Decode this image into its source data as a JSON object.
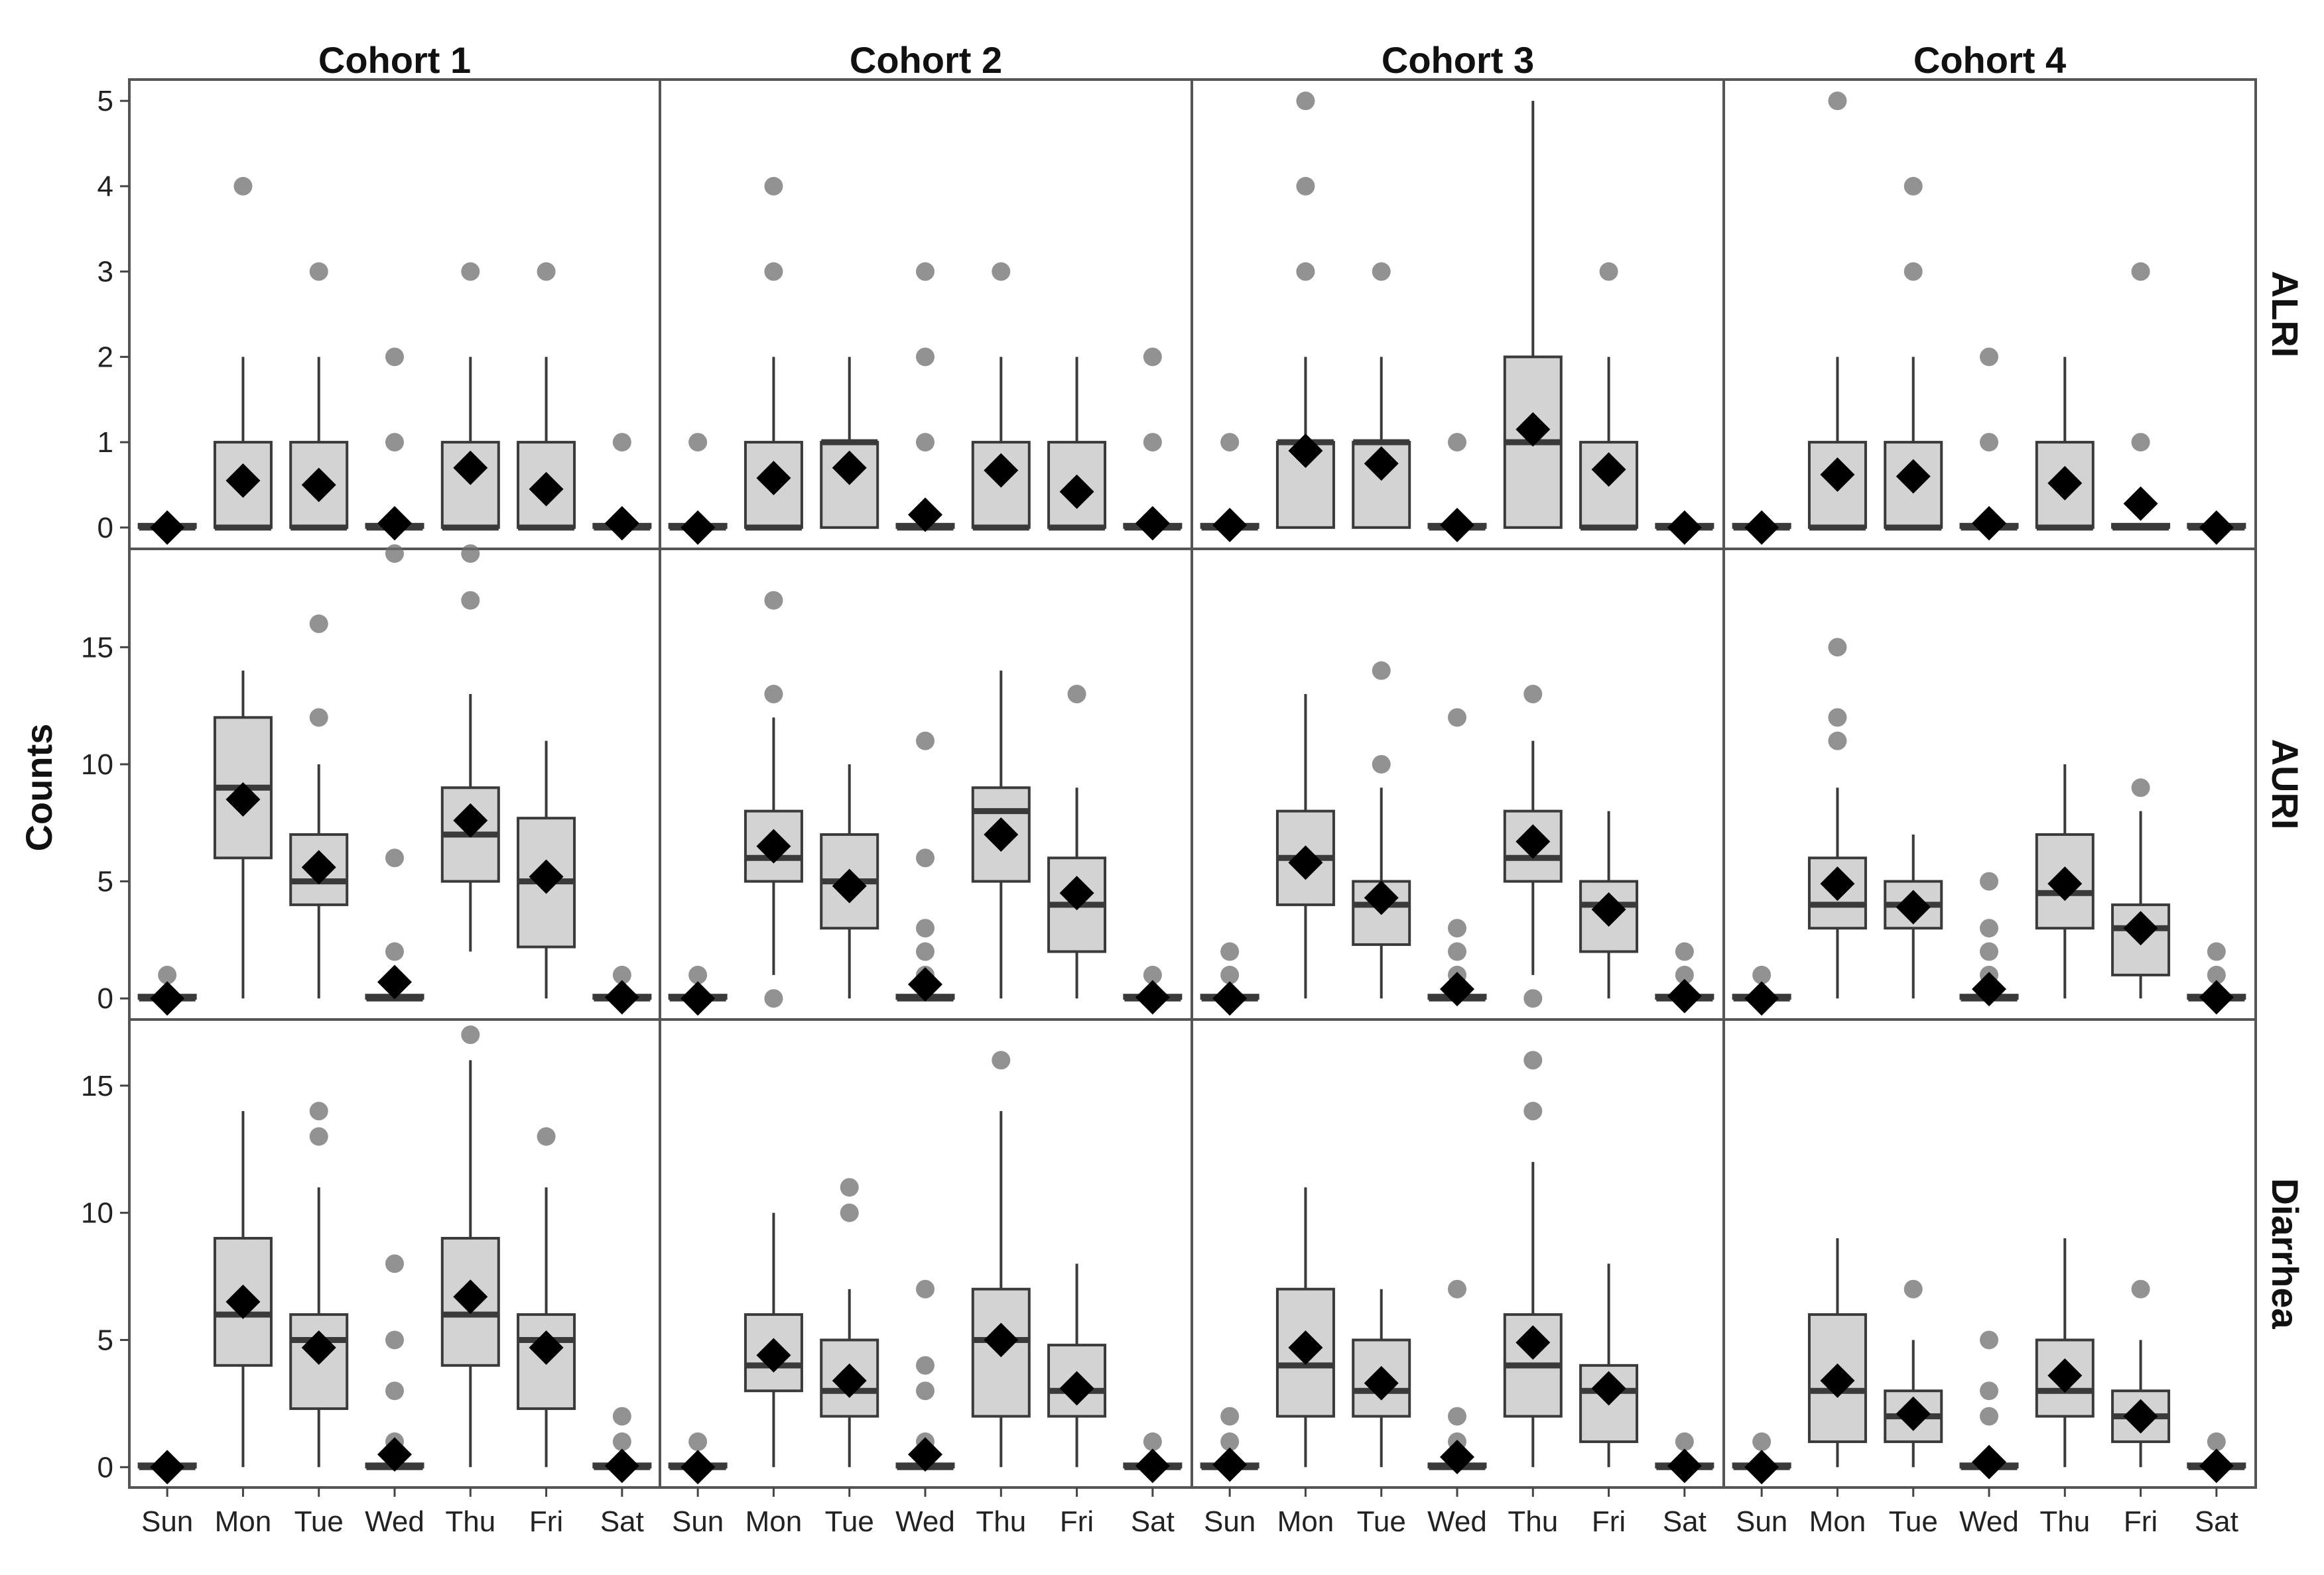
{
  "chart_data": {
    "type": "boxplot",
    "ylabel": "Counts",
    "columns": [
      "Cohort 1",
      "Cohort 2",
      "Cohort 3",
      "Cohort 4"
    ],
    "rows": [
      {
        "name": "ALRI",
        "ylim": [
          -0.25,
          5.25
        ],
        "ticks": [
          0,
          1,
          2,
          3,
          4,
          5
        ]
      },
      {
        "name": "AURI",
        "ylim": [
          -0.9,
          19.2
        ],
        "ticks": [
          0,
          5,
          10,
          15
        ]
      },
      {
        "name": "Diarrhea",
        "ylim": [
          -0.8,
          17.6
        ],
        "ticks": [
          0,
          5,
          10,
          15
        ]
      }
    ],
    "categories": [
      "Sun",
      "Mon",
      "Tue",
      "Wed",
      "Thu",
      "Fri",
      "Sat"
    ],
    "colors": {
      "box_fill": "#d3d3d3",
      "box_stroke": "#3a3a3a",
      "mean": "#000000",
      "outlier": "#6e6e6e",
      "frame": "#555555"
    },
    "panels": [
      [
        [
          {
            "q1": 0,
            "med": 0,
            "q3": 0,
            "lo": 0,
            "hi": 0,
            "mean": 0,
            "out": []
          },
          {
            "q1": 0,
            "med": 0,
            "q3": 1,
            "lo": 0,
            "hi": 2,
            "mean": 0.55,
            "out": [
              4
            ]
          },
          {
            "q1": 0,
            "med": 0,
            "q3": 1,
            "lo": 0,
            "hi": 2,
            "mean": 0.5,
            "out": [
              3
            ]
          },
          {
            "q1": 0,
            "med": 0,
            "q3": 0,
            "lo": 0,
            "hi": 0,
            "mean": 0.05,
            "out": [
              1,
              2
            ]
          },
          {
            "q1": 0,
            "med": 0,
            "q3": 1,
            "lo": 0,
            "hi": 2,
            "mean": 0.7,
            "out": [
              3
            ]
          },
          {
            "q1": 0,
            "med": 0,
            "q3": 1,
            "lo": 0,
            "hi": 2,
            "mean": 0.45,
            "out": [
              3
            ]
          },
          {
            "q1": 0,
            "med": 0,
            "q3": 0,
            "lo": 0,
            "hi": 0,
            "mean": 0.05,
            "out": [
              1
            ]
          }
        ],
        [
          {
            "q1": 0,
            "med": 0,
            "q3": 0,
            "lo": 0,
            "hi": 0,
            "mean": 0,
            "out": [
              1
            ]
          },
          {
            "q1": 0,
            "med": 0,
            "q3": 1,
            "lo": 0,
            "hi": 2,
            "mean": 0.58,
            "out": [
              3,
              4
            ]
          },
          {
            "q1": 0,
            "med": 1,
            "q3": 1,
            "lo": 0,
            "hi": 2,
            "mean": 0.7,
            "out": []
          },
          {
            "q1": 0,
            "med": 0,
            "q3": 0,
            "lo": 0,
            "hi": 0,
            "mean": 0.15,
            "out": [
              1,
              2,
              3
            ]
          },
          {
            "q1": 0,
            "med": 0,
            "q3": 1,
            "lo": 0,
            "hi": 2,
            "mean": 0.67,
            "out": [
              3
            ]
          },
          {
            "q1": 0,
            "med": 0,
            "q3": 1,
            "lo": 0,
            "hi": 2,
            "mean": 0.42,
            "out": []
          },
          {
            "q1": 0,
            "med": 0,
            "q3": 0,
            "lo": 0,
            "hi": 0,
            "mean": 0.05,
            "out": [
              1,
              2
            ]
          }
        ],
        [
          {
            "q1": 0,
            "med": 0,
            "q3": 0,
            "lo": 0,
            "hi": 0,
            "mean": 0.03,
            "out": [
              1
            ]
          },
          {
            "q1": 0,
            "med": 1,
            "q3": 1,
            "lo": 0,
            "hi": 2,
            "mean": 0.9,
            "out": [
              3,
              4,
              5
            ]
          },
          {
            "q1": 0,
            "med": 1,
            "q3": 1,
            "lo": 0,
            "hi": 2,
            "mean": 0.75,
            "out": [
              3
            ]
          },
          {
            "q1": 0,
            "med": 0,
            "q3": 0,
            "lo": 0,
            "hi": 0,
            "mean": 0.03,
            "out": [
              1
            ]
          },
          {
            "q1": 0,
            "med": 1,
            "q3": 2,
            "lo": 0,
            "hi": 5,
            "mean": 1.15,
            "out": []
          },
          {
            "q1": 0,
            "med": 0,
            "q3": 1,
            "lo": 0,
            "hi": 2,
            "mean": 0.68,
            "out": [
              3
            ]
          },
          {
            "q1": 0,
            "med": 0,
            "q3": 0,
            "lo": 0,
            "hi": 0,
            "mean": 0,
            "out": []
          }
        ],
        [
          {
            "q1": 0,
            "med": 0,
            "q3": 0,
            "lo": 0,
            "hi": 0,
            "mean": 0,
            "out": []
          },
          {
            "q1": 0,
            "med": 0,
            "q3": 1,
            "lo": 0,
            "hi": 2,
            "mean": 0.62,
            "out": [
              5
            ]
          },
          {
            "q1": 0,
            "med": 0,
            "q3": 1,
            "lo": 0,
            "hi": 2,
            "mean": 0.6,
            "out": [
              3,
              4
            ]
          },
          {
            "q1": 0,
            "med": 0,
            "q3": 0,
            "lo": 0,
            "hi": 0,
            "mean": 0.05,
            "out": [
              1,
              2
            ]
          },
          {
            "q1": 0,
            "med": 0,
            "q3": 1,
            "lo": 0,
            "hi": 2,
            "mean": 0.52,
            "out": []
          },
          {
            "q1": 0,
            "med": 0,
            "q3": 0,
            "lo": 0,
            "hi": 0,
            "mean": 0.28,
            "out": [
              1,
              3
            ]
          },
          {
            "q1": 0,
            "med": 0,
            "q3": 0,
            "lo": 0,
            "hi": 0,
            "mean": 0,
            "out": []
          }
        ]
      ],
      [
        [
          {
            "q1": 0,
            "med": 0,
            "q3": 0,
            "lo": 0,
            "hi": 0,
            "mean": 0,
            "out": [
              1
            ]
          },
          {
            "q1": 6,
            "med": 9,
            "q3": 12,
            "lo": 0,
            "hi": 14,
            "mean": 8.5,
            "out": []
          },
          {
            "q1": 4,
            "med": 5,
            "q3": 7,
            "lo": 0,
            "hi": 10,
            "mean": 5.6,
            "out": [
              12,
              16
            ]
          },
          {
            "q1": 0,
            "med": 0,
            "q3": 0,
            "lo": 0,
            "hi": 0,
            "mean": 0.7,
            "out": [
              2,
              6,
              19
            ]
          },
          {
            "q1": 5,
            "med": 7,
            "q3": 9,
            "lo": 2,
            "hi": 13,
            "mean": 7.6,
            "out": [
              17,
              19
            ]
          },
          {
            "q1": 2.2,
            "med": 5,
            "q3": 7.7,
            "lo": 0,
            "hi": 11,
            "mean": 5.2,
            "out": []
          },
          {
            "q1": 0,
            "med": 0,
            "q3": 0,
            "lo": 0,
            "hi": 0,
            "mean": 0.05,
            "out": [
              1
            ]
          }
        ],
        [
          {
            "q1": 0,
            "med": 0,
            "q3": 0,
            "lo": 0,
            "hi": 0,
            "mean": 0,
            "out": [
              1
            ]
          },
          {
            "q1": 5,
            "med": 6,
            "q3": 8,
            "lo": 1,
            "hi": 12,
            "mean": 6.5,
            "out": [
              0,
              13,
              17
            ]
          },
          {
            "q1": 3,
            "med": 5,
            "q3": 7,
            "lo": 0,
            "hi": 10,
            "mean": 4.8,
            "out": []
          },
          {
            "q1": 0,
            "med": 0,
            "q3": 0,
            "lo": 0,
            "hi": 0,
            "mean": 0.6,
            "out": [
              1,
              2,
              3,
              6,
              11
            ]
          },
          {
            "q1": 5,
            "med": 8,
            "q3": 9,
            "lo": 0,
            "hi": 14,
            "mean": 7,
            "out": []
          },
          {
            "q1": 2,
            "med": 4,
            "q3": 6,
            "lo": 0,
            "hi": 9,
            "mean": 4.5,
            "out": [
              13
            ]
          },
          {
            "q1": 0,
            "med": 0,
            "q3": 0,
            "lo": 0,
            "hi": 0,
            "mean": 0.05,
            "out": [
              1
            ]
          }
        ],
        [
          {
            "q1": 0,
            "med": 0,
            "q3": 0,
            "lo": 0,
            "hi": 0,
            "mean": 0,
            "out": [
              1,
              2
            ]
          },
          {
            "q1": 4,
            "med": 6,
            "q3": 8,
            "lo": 0,
            "hi": 13,
            "mean": 5.8,
            "out": []
          },
          {
            "q1": 2.3,
            "med": 4,
            "q3": 5,
            "lo": 0,
            "hi": 9,
            "mean": 4.3,
            "out": [
              10,
              14
            ]
          },
          {
            "q1": 0,
            "med": 0,
            "q3": 0,
            "lo": 0,
            "hi": 0,
            "mean": 0.4,
            "out": [
              1,
              2,
              3,
              12
            ]
          },
          {
            "q1": 5,
            "med": 6,
            "q3": 8,
            "lo": 1,
            "hi": 11,
            "mean": 6.7,
            "out": [
              0,
              13
            ]
          },
          {
            "q1": 2,
            "med": 4,
            "q3": 5,
            "lo": 0,
            "hi": 8,
            "mean": 3.8,
            "out": []
          },
          {
            "q1": 0,
            "med": 0,
            "q3": 0,
            "lo": 0,
            "hi": 0,
            "mean": 0.1,
            "out": [
              1,
              2
            ]
          }
        ],
        [
          {
            "q1": 0,
            "med": 0,
            "q3": 0,
            "lo": 0,
            "hi": 0,
            "mean": 0,
            "out": [
              1
            ]
          },
          {
            "q1": 3,
            "med": 4,
            "q3": 6,
            "lo": 0,
            "hi": 9,
            "mean": 4.9,
            "out": [
              11,
              12,
              15
            ]
          },
          {
            "q1": 3,
            "med": 4,
            "q3": 5,
            "lo": 0,
            "hi": 7,
            "mean": 3.9,
            "out": []
          },
          {
            "q1": 0,
            "med": 0,
            "q3": 0,
            "lo": 0,
            "hi": 0,
            "mean": 0.4,
            "out": [
              1,
              2,
              3,
              5
            ]
          },
          {
            "q1": 3,
            "med": 4.5,
            "q3": 7,
            "lo": 0,
            "hi": 10,
            "mean": 4.9,
            "out": []
          },
          {
            "q1": 1,
            "med": 3,
            "q3": 4,
            "lo": 0,
            "hi": 8,
            "mean": 3,
            "out": [
              9
            ]
          },
          {
            "q1": 0,
            "med": 0,
            "q3": 0,
            "lo": 0,
            "hi": 0,
            "mean": 0.05,
            "out": [
              1,
              2
            ]
          }
        ]
      ],
      [
        [
          {
            "q1": 0,
            "med": 0,
            "q3": 0,
            "lo": 0,
            "hi": 0,
            "mean": 0,
            "out": []
          },
          {
            "q1": 4,
            "med": 6,
            "q3": 9,
            "lo": 0,
            "hi": 14,
            "mean": 6.5,
            "out": []
          },
          {
            "q1": 2.3,
            "med": 5,
            "q3": 6,
            "lo": 0,
            "hi": 11,
            "mean": 4.7,
            "out": [
              13,
              14
            ]
          },
          {
            "q1": 0,
            "med": 0,
            "q3": 0,
            "lo": 0,
            "hi": 0,
            "mean": 0.5,
            "out": [
              1,
              3,
              5,
              8
            ]
          },
          {
            "q1": 4,
            "med": 6,
            "q3": 9,
            "lo": 0,
            "hi": 16,
            "mean": 6.7,
            "out": [
              17
            ]
          },
          {
            "q1": 2.3,
            "med": 5,
            "q3": 6,
            "lo": 0,
            "hi": 11,
            "mean": 4.7,
            "out": [
              13
            ]
          },
          {
            "q1": 0,
            "med": 0,
            "q3": 0,
            "lo": 0,
            "hi": 0,
            "mean": 0.05,
            "out": [
              1,
              2
            ]
          }
        ],
        [
          {
            "q1": 0,
            "med": 0,
            "q3": 0,
            "lo": 0,
            "hi": 0,
            "mean": 0,
            "out": [
              1
            ]
          },
          {
            "q1": 3,
            "med": 4,
            "q3": 6,
            "lo": 0,
            "hi": 10,
            "mean": 4.4,
            "out": []
          },
          {
            "q1": 2,
            "med": 3,
            "q3": 5,
            "lo": 0,
            "hi": 7,
            "mean": 3.4,
            "out": [
              10,
              11
            ]
          },
          {
            "q1": 0,
            "med": 0,
            "q3": 0,
            "lo": 0,
            "hi": 0,
            "mean": 0.5,
            "out": [
              1,
              3,
              4,
              7
            ]
          },
          {
            "q1": 2,
            "med": 5,
            "q3": 7,
            "lo": 0,
            "hi": 14,
            "mean": 5,
            "out": [
              16
            ]
          },
          {
            "q1": 2,
            "med": 3,
            "q3": 4.8,
            "lo": 0,
            "hi": 8,
            "mean": 3.1,
            "out": []
          },
          {
            "q1": 0,
            "med": 0,
            "q3": 0,
            "lo": 0,
            "hi": 0,
            "mean": 0.05,
            "out": [
              1
            ]
          }
        ],
        [
          {
            "q1": 0,
            "med": 0,
            "q3": 0,
            "lo": 0,
            "hi": 0,
            "mean": 0.1,
            "out": [
              1,
              2
            ]
          },
          {
            "q1": 2,
            "med": 4,
            "q3": 7,
            "lo": 0,
            "hi": 11,
            "mean": 4.7,
            "out": []
          },
          {
            "q1": 2,
            "med": 3,
            "q3": 5,
            "lo": 0,
            "hi": 7,
            "mean": 3.3,
            "out": []
          },
          {
            "q1": 0,
            "med": 0,
            "q3": 0,
            "lo": 0,
            "hi": 0,
            "mean": 0.4,
            "out": [
              1,
              2,
              7
            ]
          },
          {
            "q1": 2,
            "med": 4,
            "q3": 6,
            "lo": 0,
            "hi": 12,
            "mean": 4.9,
            "out": [
              14,
              16
            ]
          },
          {
            "q1": 1,
            "med": 3,
            "q3": 4,
            "lo": 0,
            "hi": 8,
            "mean": 3.1,
            "out": []
          },
          {
            "q1": 0,
            "med": 0,
            "q3": 0,
            "lo": 0,
            "hi": 0,
            "mean": 0.05,
            "out": [
              1
            ]
          }
        ],
        [
          {
            "q1": 0,
            "med": 0,
            "q3": 0,
            "lo": 0,
            "hi": 0,
            "mean": 0,
            "out": [
              1
            ]
          },
          {
            "q1": 1,
            "med": 3,
            "q3": 6,
            "lo": 0,
            "hi": 9,
            "mean": 3.4,
            "out": []
          },
          {
            "q1": 1,
            "med": 2,
            "q3": 3,
            "lo": 0,
            "hi": 5,
            "mean": 2.1,
            "out": [
              7
            ]
          },
          {
            "q1": 0,
            "med": 0,
            "q3": 0,
            "lo": 0,
            "hi": 0,
            "mean": 0.2,
            "out": [
              2,
              3,
              5
            ]
          },
          {
            "q1": 2,
            "med": 3,
            "q3": 5,
            "lo": 0,
            "hi": 9,
            "mean": 3.6,
            "out": []
          },
          {
            "q1": 1,
            "med": 2,
            "q3": 3,
            "lo": 0,
            "hi": 5,
            "mean": 2,
            "out": [
              7
            ]
          },
          {
            "q1": 0,
            "med": 0,
            "q3": 0,
            "lo": 0,
            "hi": 0,
            "mean": 0.05,
            "out": [
              1
            ]
          }
        ]
      ]
    ]
  }
}
